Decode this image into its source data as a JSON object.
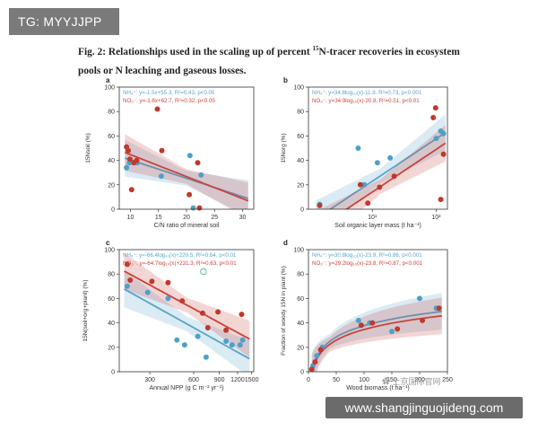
{
  "tag": {
    "label": "TG: MYYJJPP"
  },
  "figure": {
    "title_prefix": "Fig. 2: Relationships used in the scaling up of percent ",
    "title_sup": "15",
    "title_rest": "N-tracer recoveries in ecosystem pools or N leaching and gaseous losses."
  },
  "watermark": {
    "text": "www.shangjinguojideng.com",
    "logo_text": "上京国际官网"
  },
  "colors": {
    "nh4": "#56a5cc",
    "no3": "#c8433d",
    "point_nh4": "#4fa0c8",
    "point_no3": "#c0392b"
  },
  "chart_data": [
    {
      "panel": "a",
      "type": "scatter",
      "xlabel": "C/N ratio of mineral soil",
      "ylabel_html": "15N<sub>soil</sub> (%)",
      "ylabel": "15Nsoil (%)",
      "xscale": "linear",
      "xlim": [
        8,
        32
      ],
      "ylim": [
        0,
        100
      ],
      "xticks": [
        10,
        15,
        20,
        25,
        30
      ],
      "yticks": [
        0,
        20,
        40,
        60,
        80,
        100
      ],
      "legend": [
        {
          "series": "NH4",
          "text": "NH₄⁺: y=-1.5x+55.3, R²=0.43, p<0.05"
        },
        {
          "series": "NO3",
          "text": "NO₃⁻: y=-1.8x+62.7, R²=0.32, p<0.05"
        }
      ],
      "fit": [
        {
          "series": "NH4",
          "form": "linear",
          "a": -1.5,
          "b": 55.3,
          "x": [
            9,
            31
          ]
        },
        {
          "series": "NO3",
          "form": "linear",
          "a": -1.8,
          "b": 62.7,
          "x": [
            9,
            31
          ]
        }
      ],
      "points": [
        {
          "series": "NH4",
          "x": 9.3,
          "y": 34
        },
        {
          "series": "NH4",
          "x": 9.8,
          "y": 38
        },
        {
          "series": "NH4",
          "x": 11.2,
          "y": 38
        },
        {
          "series": "NH4",
          "x": 15.5,
          "y": 27
        },
        {
          "series": "NH4",
          "x": 20.6,
          "y": 44
        },
        {
          "series": "NH4",
          "x": 21.2,
          "y": 1
        },
        {
          "series": "NH4",
          "x": 22.6,
          "y": 28
        },
        {
          "series": "NO3",
          "x": 9.3,
          "y": 51
        },
        {
          "series": "NO3",
          "x": 9.6,
          "y": 48
        },
        {
          "series": "NO3",
          "x": 9.9,
          "y": 41
        },
        {
          "series": "NO3",
          "x": 10.2,
          "y": 16
        },
        {
          "series": "NO3",
          "x": 10.6,
          "y": 38
        },
        {
          "series": "NO3",
          "x": 11.1,
          "y": 40
        },
        {
          "series": "NO3",
          "x": 14.8,
          "y": 82
        },
        {
          "series": "NO3",
          "x": 15.6,
          "y": 48
        },
        {
          "series": "NO3",
          "x": 20.5,
          "y": 12
        },
        {
          "series": "NO3",
          "x": 22.0,
          "y": 38
        },
        {
          "series": "NO3",
          "x": 22.3,
          "y": 1
        }
      ]
    },
    {
      "panel": "b",
      "type": "scatter",
      "xlabel": "Soil organic layer mass (t ha⁻¹)",
      "ylabel": "15Norg (%)",
      "xscale": "log",
      "xlim": [
        1,
        150
      ],
      "ylim": [
        0,
        100
      ],
      "xticks": [
        10,
        100
      ],
      "xticklabels": [
        "10¹",
        "10²"
      ],
      "yticks": [
        0,
        20,
        40,
        60,
        80,
        100
      ],
      "legend": [
        {
          "series": "NH4",
          "text": "NH₄⁺: y=34.8log₁₀(x)-11.9, R²=0.73, p<0.001"
        },
        {
          "series": "NO3",
          "text": "NO₃⁻: y=34.9log₁₀(x)-20.8, R²=0.51, p<0.01"
        }
      ],
      "fit": [
        {
          "series": "NH4",
          "form": "log",
          "a": 34.8,
          "b": -11.9,
          "x": [
            1.3,
            140
          ]
        },
        {
          "series": "NO3",
          "form": "log",
          "a": 34.9,
          "b": -20.8,
          "x": [
            1.3,
            140
          ]
        }
      ],
      "points": [
        {
          "series": "NH4",
          "x": 1.5,
          "y": 4
        },
        {
          "series": "NH4",
          "x": 6.0,
          "y": 50
        },
        {
          "series": "NH4",
          "x": 7.5,
          "y": 20
        },
        {
          "series": "NH4",
          "x": 12,
          "y": 38
        },
        {
          "series": "NH4",
          "x": 19,
          "y": 42
        },
        {
          "series": "NH4",
          "x": 100,
          "y": 58
        },
        {
          "series": "NH4",
          "x": 118,
          "y": 64
        },
        {
          "series": "NH4",
          "x": 130,
          "y": 62
        },
        {
          "series": "NO3",
          "x": 1.5,
          "y": 3
        },
        {
          "series": "NO3",
          "x": 6.5,
          "y": 20
        },
        {
          "series": "NO3",
          "x": 8.5,
          "y": 5
        },
        {
          "series": "NO3",
          "x": 13,
          "y": 18
        },
        {
          "series": "NO3",
          "x": 22,
          "y": 27
        },
        {
          "series": "NO3",
          "x": 90,
          "y": 75
        },
        {
          "series": "NO3",
          "x": 98,
          "y": 83
        },
        {
          "series": "NO3",
          "x": 118,
          "y": 8
        },
        {
          "series": "NO3",
          "x": 130,
          "y": 45
        }
      ]
    },
    {
      "panel": "c",
      "type": "scatter",
      "xlabel": "Annual NPP (g C m⁻² yr⁻¹)",
      "ylabel": "15N(soil+org+plant) (%)",
      "xscale": "log",
      "xlim": [
        185,
        1550
      ],
      "ylim": [
        0,
        100
      ],
      "xticks": [
        300,
        600,
        900,
        1200,
        1500
      ],
      "xticklabels": [
        "300",
        "600",
        "900",
        "1200",
        "1500"
      ],
      "yticks": [
        0,
        20,
        40,
        60,
        80,
        100
      ],
      "legend": [
        {
          "series": "NH4",
          "text": "NH₄⁺: y=-66.4log₁₀(x)+220.5, R²=0.64, p<0.01"
        },
        {
          "series": "NO3",
          "text": "NO₃⁻: y=-64.7log₁₀(x)+231.3, R²=0.63, p<0.01"
        }
      ],
      "fit": [
        {
          "series": "NH4",
          "form": "log",
          "a": -66.4,
          "b": 220.5,
          "x": [
            200,
            1450
          ]
        },
        {
          "series": "NO3",
          "form": "log",
          "a": -64.7,
          "b": 231.3,
          "x": [
            200,
            1450
          ]
        }
      ],
      "points": [
        {
          "series": "NH4",
          "x": 210,
          "y": 70
        },
        {
          "series": "NH4",
          "x": 290,
          "y": 65
        },
        {
          "series": "NH4",
          "x": 400,
          "y": 60
        },
        {
          "series": "NH4",
          "x": 460,
          "y": 26
        },
        {
          "series": "NH4",
          "x": 520,
          "y": 22
        },
        {
          "series": "NH4",
          "x": 640,
          "y": 29
        },
        {
          "series": "NH4",
          "x": 730,
          "y": 12
        },
        {
          "series": "NH4",
          "x": 1000,
          "y": 25
        },
        {
          "series": "NH4",
          "x": 1100,
          "y": 22
        },
        {
          "series": "NH4",
          "x": 1250,
          "y": 22
        },
        {
          "series": "NH4",
          "x": 1300,
          "y": 26
        },
        {
          "series": "NO3",
          "x": 210,
          "y": 88
        },
        {
          "series": "NO3",
          "x": 220,
          "y": 75
        },
        {
          "series": "NO3",
          "x": 310,
          "y": 74
        },
        {
          "series": "NO3",
          "x": 400,
          "y": 73
        },
        {
          "series": "NO3",
          "x": 500,
          "y": 58
        },
        {
          "series": "NO3",
          "x": 690,
          "y": 48
        },
        {
          "series": "NO3",
          "x": 750,
          "y": 36
        },
        {
          "series": "NO3",
          "x": 880,
          "y": 49
        },
        {
          "series": "NO3",
          "x": 1000,
          "y": 34
        },
        {
          "series": "NO3",
          "x": 1280,
          "y": 47
        }
      ],
      "open_points": [
        {
          "series": "NH4",
          "x": 700,
          "y": 82
        }
      ]
    },
    {
      "panel": "d",
      "type": "scatter",
      "xlabel": "Wood biomass (t ha⁻¹)",
      "ylabel": "Fraction of woody 15N in plant (%)",
      "xscale": "linear",
      "xlim": [
        0,
        250
      ],
      "ylim": [
        0,
        100
      ],
      "xticks": [
        0,
        50,
        100,
        150,
        200,
        250
      ],
      "yticks": [
        0,
        20,
        40,
        60,
        80,
        100
      ],
      "legend": [
        {
          "series": "NH4",
          "text": "NH₄⁺: y=30.8log₁₀(x)-23.9, R²=0.86, p<0.001"
        },
        {
          "series": "NO3",
          "text": "NO₃⁻: y=29.2log₁₀(x)-23.8, R²=0.87, p<0.001"
        }
      ],
      "fit": [
        {
          "series": "NH4",
          "form": "log",
          "a": 30.8,
          "b": -23.9,
          "x": [
            6,
            240
          ]
        },
        {
          "series": "NO3",
          "form": "log",
          "a": 29.2,
          "b": -23.8,
          "x": [
            6,
            240
          ]
        }
      ],
      "points": [
        {
          "series": "NH4",
          "x": 8,
          "y": 5
        },
        {
          "series": "NH4",
          "x": 15,
          "y": 13
        },
        {
          "series": "NH4",
          "x": 25,
          "y": 20
        },
        {
          "series": "NH4",
          "x": 90,
          "y": 42
        },
        {
          "series": "NH4",
          "x": 110,
          "y": 40
        },
        {
          "series": "NH4",
          "x": 150,
          "y": 33
        },
        {
          "series": "NH4",
          "x": 200,
          "y": 60
        },
        {
          "series": "NH4",
          "x": 230,
          "y": 52
        },
        {
          "series": "NO3",
          "x": 6,
          "y": 2
        },
        {
          "series": "NO3",
          "x": 12,
          "y": 8
        },
        {
          "series": "NO3",
          "x": 22,
          "y": 18
        },
        {
          "series": "NO3",
          "x": 95,
          "y": 38
        },
        {
          "series": "NO3",
          "x": 115,
          "y": 40
        },
        {
          "series": "NO3",
          "x": 160,
          "y": 35
        },
        {
          "series": "NO3",
          "x": 205,
          "y": 42
        },
        {
          "series": "NO3",
          "x": 235,
          "y": 52
        }
      ]
    }
  ]
}
